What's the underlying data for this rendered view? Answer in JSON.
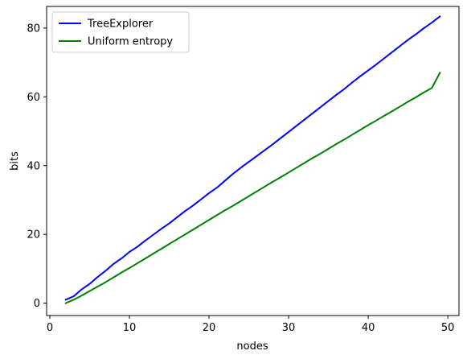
{
  "chart_data": {
    "type": "line",
    "title": "",
    "xlabel": "nodes",
    "ylabel": "bits",
    "xlim": [
      -0.4,
      51.4
    ],
    "ylim": [
      -3.6,
      86.3
    ],
    "xticks": [
      0,
      10,
      20,
      30,
      40,
      50
    ],
    "yticks": [
      0,
      20,
      40,
      60,
      80
    ],
    "grid": false,
    "legend_position": "top-left",
    "x": [
      2,
      3,
      4,
      5,
      6,
      7,
      8,
      9,
      10,
      11,
      12,
      13,
      14,
      15,
      16,
      17,
      18,
      19,
      20,
      21,
      22,
      23,
      24,
      25,
      26,
      27,
      28,
      29,
      30,
      31,
      32,
      33,
      34,
      35,
      36,
      37,
      38,
      39,
      40,
      41,
      42,
      43,
      44,
      45,
      46,
      47,
      48,
      49
    ],
    "series": [
      {
        "name": "TreeExplorer",
        "color": "#0000ff",
        "values": [
          1.0,
          2.0,
          4.0,
          5.6,
          7.6,
          9.4,
          11.4,
          13.0,
          14.9,
          16.4,
          18.2,
          19.9,
          21.6,
          23.2,
          25.0,
          26.8,
          28.4,
          30.2,
          32.0,
          33.6,
          35.6,
          37.6,
          39.4,
          41.1,
          42.8,
          44.5,
          46.2,
          48.0,
          49.8,
          51.6,
          53.4,
          55.2,
          57.0,
          58.8,
          60.6,
          62.3,
          64.2,
          66.0,
          67.7,
          69.4,
          71.2,
          73.0,
          74.8,
          76.6,
          78.2,
          80.0,
          81.6,
          83.4
        ]
      },
      {
        "name": "Uniform entropy",
        "color": "#008000",
        "values": [
          0.0,
          1.0,
          2.2,
          3.5,
          4.8,
          6.1,
          7.5,
          8.9,
          10.2,
          11.6,
          13.0,
          14.4,
          15.8,
          17.2,
          18.6,
          20.0,
          21.4,
          22.8,
          24.2,
          25.6,
          27.0,
          28.3,
          29.7,
          31.1,
          32.5,
          33.9,
          35.3,
          36.6,
          38.0,
          39.4,
          40.8,
          42.2,
          43.5,
          44.9,
          46.3,
          47.6,
          49.0,
          50.4,
          51.8,
          53.1,
          54.5,
          55.8,
          57.2,
          58.6,
          59.9,
          61.3,
          62.6,
          67.0
        ]
      }
    ]
  }
}
